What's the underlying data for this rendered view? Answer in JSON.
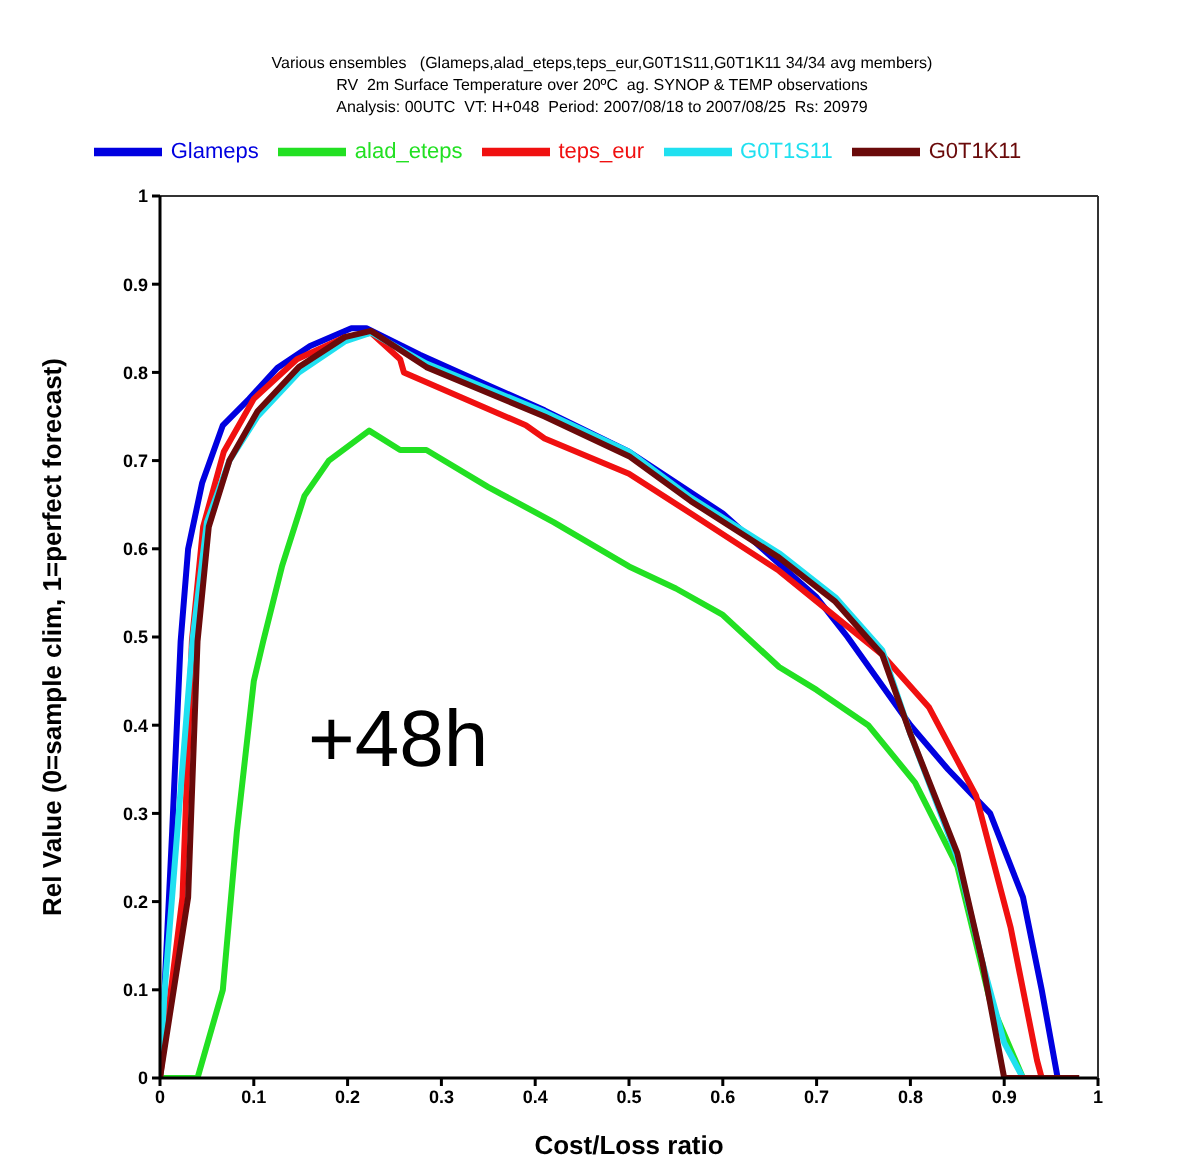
{
  "chart_data": {
    "type": "line",
    "title": "Various ensembles   (Glameps,alad_eteps,teps_eur,G0T1S11,G0T1K11 34/34 avg members)",
    "subtitle": "RV  2m Surface Temperature over 20ºC  ag. SYNOP & TEMP observations\nAnalysis: 00UTC  VT: H+048  Period: 2007/08/18 to 2007/08/25  Rs: 20979",
    "xlabel": "Cost/Loss ratio",
    "ylabel": "Rel Value (0=sample clim, 1=perfect forecast)",
    "annotations": [
      "+48h"
    ],
    "xlim": [
      0,
      1
    ],
    "xticks": [
      0,
      0.1,
      0.2,
      0.3,
      0.4,
      0.5,
      0.6,
      0.7,
      0.8,
      0.9,
      1
    ],
    "ylim": [
      0,
      1
    ],
    "yticks": [
      0,
      0.1,
      0.2,
      0.3,
      0.4,
      0.5,
      0.6,
      0.7,
      0.8,
      0.9,
      1
    ],
    "legend": "top",
    "marker": "none",
    "line_style": "solid",
    "series": [
      {
        "name": "Glameps",
        "color": "#0000e0",
        "x": [
          0,
          0.002,
          0.013,
          0.022,
          0.03,
          0.045,
          0.067,
          0.095,
          0.125,
          0.16,
          0.204,
          0.22,
          0.277,
          0.34,
          0.41,
          0.5,
          0.6,
          0.7,
          0.733,
          0.8,
          0.84,
          0.885,
          0.92,
          0.94,
          0.957
        ],
        "values": [
          0,
          0.04,
          0.28,
          0.495,
          0.6,
          0.675,
          0.74,
          0.77,
          0.805,
          0.83,
          0.85,
          0.85,
          0.82,
          0.79,
          0.757,
          0.71,
          0.64,
          0.545,
          0.5,
          0.4,
          0.35,
          0.3,
          0.205,
          0.1,
          0
        ]
      },
      {
        "name": "alad_eteps",
        "color": "#22e022",
        "x": [
          0,
          0.04,
          0.067,
          0.082,
          0.1,
          0.11,
          0.13,
          0.154,
          0.18,
          0.223,
          0.256,
          0.284,
          0.35,
          0.42,
          0.5,
          0.55,
          0.6,
          0.66,
          0.7,
          0.755,
          0.805,
          0.85,
          0.885,
          0.92
        ],
        "values": [
          0,
          0,
          0.1,
          0.28,
          0.45,
          0.495,
          0.58,
          0.66,
          0.7,
          0.734,
          0.712,
          0.712,
          0.67,
          0.63,
          0.58,
          0.555,
          0.525,
          0.466,
          0.44,
          0.4,
          0.335,
          0.24,
          0.087,
          0
        ]
      },
      {
        "name": "teps_eur",
        "color": "#f01010",
        "x": [
          0,
          0.024,
          0.034,
          0.046,
          0.068,
          0.1,
          0.146,
          0.197,
          0.225,
          0.256,
          0.26,
          0.39,
          0.41,
          0.5,
          0.566,
          0.66,
          0.77,
          0.82,
          0.87,
          0.907,
          0.935,
          0.94
        ],
        "values": [
          0,
          0.205,
          0.495,
          0.625,
          0.71,
          0.77,
          0.815,
          0.84,
          0.845,
          0.815,
          0.8,
          0.74,
          0.725,
          0.685,
          0.64,
          0.575,
          0.48,
          0.42,
          0.32,
          0.17,
          0.02,
          0
        ]
      },
      {
        "name": "G0T1S11",
        "color": "#20e0f0",
        "x": [
          0,
          0.005,
          0.02,
          0.035,
          0.05,
          0.074,
          0.104,
          0.148,
          0.197,
          0.225,
          0.284,
          0.41,
          0.5,
          0.566,
          0.66,
          0.72,
          0.77,
          0.8,
          0.85,
          0.877,
          0.9,
          0.92
        ],
        "values": [
          0,
          0.1,
          0.3,
          0.5,
          0.63,
          0.7,
          0.75,
          0.8,
          0.835,
          0.845,
          0.81,
          0.755,
          0.71,
          0.658,
          0.595,
          0.545,
          0.485,
          0.39,
          0.25,
          0.13,
          0.04,
          0
        ]
      },
      {
        "name": "G0T1K11",
        "color": "#6a0a0a",
        "x": [
          0,
          0.03,
          0.04,
          0.052,
          0.074,
          0.104,
          0.148,
          0.197,
          0.225,
          0.284,
          0.41,
          0.5,
          0.566,
          0.66,
          0.72,
          0.77,
          0.8,
          0.85,
          0.877,
          0.9,
          0.98
        ],
        "values": [
          0,
          0.205,
          0.495,
          0.625,
          0.7,
          0.756,
          0.806,
          0.84,
          0.847,
          0.806,
          0.75,
          0.705,
          0.654,
          0.59,
          0.54,
          0.48,
          0.39,
          0.255,
          0.13,
          0,
          0
        ]
      }
    ]
  }
}
